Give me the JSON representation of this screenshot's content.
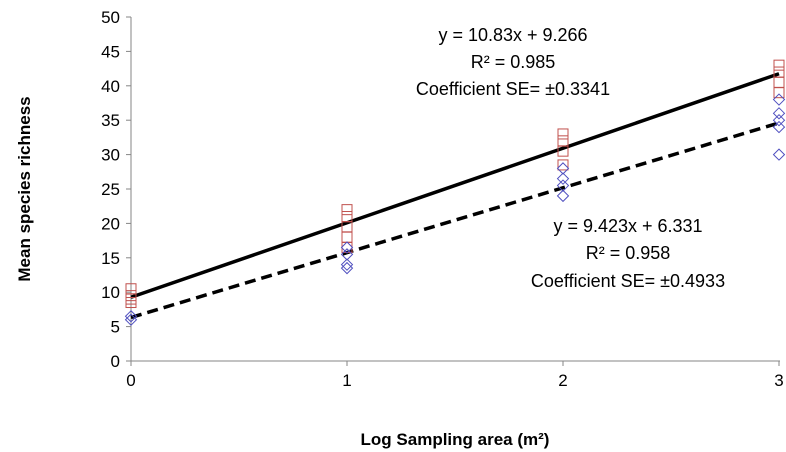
{
  "chart_data": {
    "type": "scatter",
    "title": "",
    "xlabel": "Log Sampling area (m²)",
    "ylabel": "Mean species richness",
    "xlim": [
      0,
      3
    ],
    "ylim": [
      0,
      50
    ],
    "x_ticks": [
      "0",
      "1",
      "2",
      "3"
    ],
    "y_ticks": [
      "0",
      "5",
      "10",
      "15",
      "20",
      "25",
      "30",
      "35",
      "40",
      "45",
      "50"
    ],
    "grid": false,
    "legend": "none",
    "series": [
      {
        "marker": "square",
        "color": "#c0504d",
        "points": [
          {
            "x": 0,
            "y": 8.5
          },
          {
            "x": 0,
            "y": 9.0
          },
          {
            "x": 0,
            "y": 9.5
          },
          {
            "x": 0,
            "y": 10.5
          },
          {
            "x": 1,
            "y": 16.5
          },
          {
            "x": 1,
            "y": 18.0
          },
          {
            "x": 1,
            "y": 19.5
          },
          {
            "x": 1,
            "y": 21.0
          },
          {
            "x": 1,
            "y": 22.0
          },
          {
            "x": 2,
            "y": 28.5
          },
          {
            "x": 2,
            "y": 30.5
          },
          {
            "x": 2,
            "y": 32.0
          },
          {
            "x": 2,
            "y": 33.0
          },
          {
            "x": 3,
            "y": 39.0
          },
          {
            "x": 3,
            "y": 40.5
          },
          {
            "x": 3,
            "y": 42.0
          },
          {
            "x": 3,
            "y": 43.0
          }
        ],
        "trendline": {
          "slope": 10.83,
          "intercept": 9.266,
          "style": "solid"
        }
      },
      {
        "marker": "diamond",
        "color": "#4f4fbf",
        "points": [
          {
            "x": 0,
            "y": 6.0
          },
          {
            "x": 0,
            "y": 6.5
          },
          {
            "x": 1,
            "y": 13.5
          },
          {
            "x": 1,
            "y": 14.0
          },
          {
            "x": 1,
            "y": 15.5
          },
          {
            "x": 1,
            "y": 16.5
          },
          {
            "x": 2,
            "y": 24.0
          },
          {
            "x": 2,
            "y": 25.5
          },
          {
            "x": 2,
            "y": 26.5
          },
          {
            "x": 2,
            "y": 28.0
          },
          {
            "x": 3,
            "y": 30.0
          },
          {
            "x": 3,
            "y": 34.0
          },
          {
            "x": 3,
            "y": 35.0
          },
          {
            "x": 3,
            "y": 36.0
          },
          {
            "x": 3,
            "y": 38.0
          }
        ],
        "trendline": {
          "slope": 9.423,
          "intercept": 6.331,
          "style": "dashed"
        }
      }
    ],
    "annotations": [
      {
        "lines": [
          "y = 10.83x + 9.266",
          "R² = 0.985",
          "Coefficient SE= ±0.3341"
        ]
      },
      {
        "lines": [
          "y = 9.423x + 6.331",
          "R² = 0.958",
          "Coefficient SE= ±0.4933"
        ]
      }
    ]
  }
}
